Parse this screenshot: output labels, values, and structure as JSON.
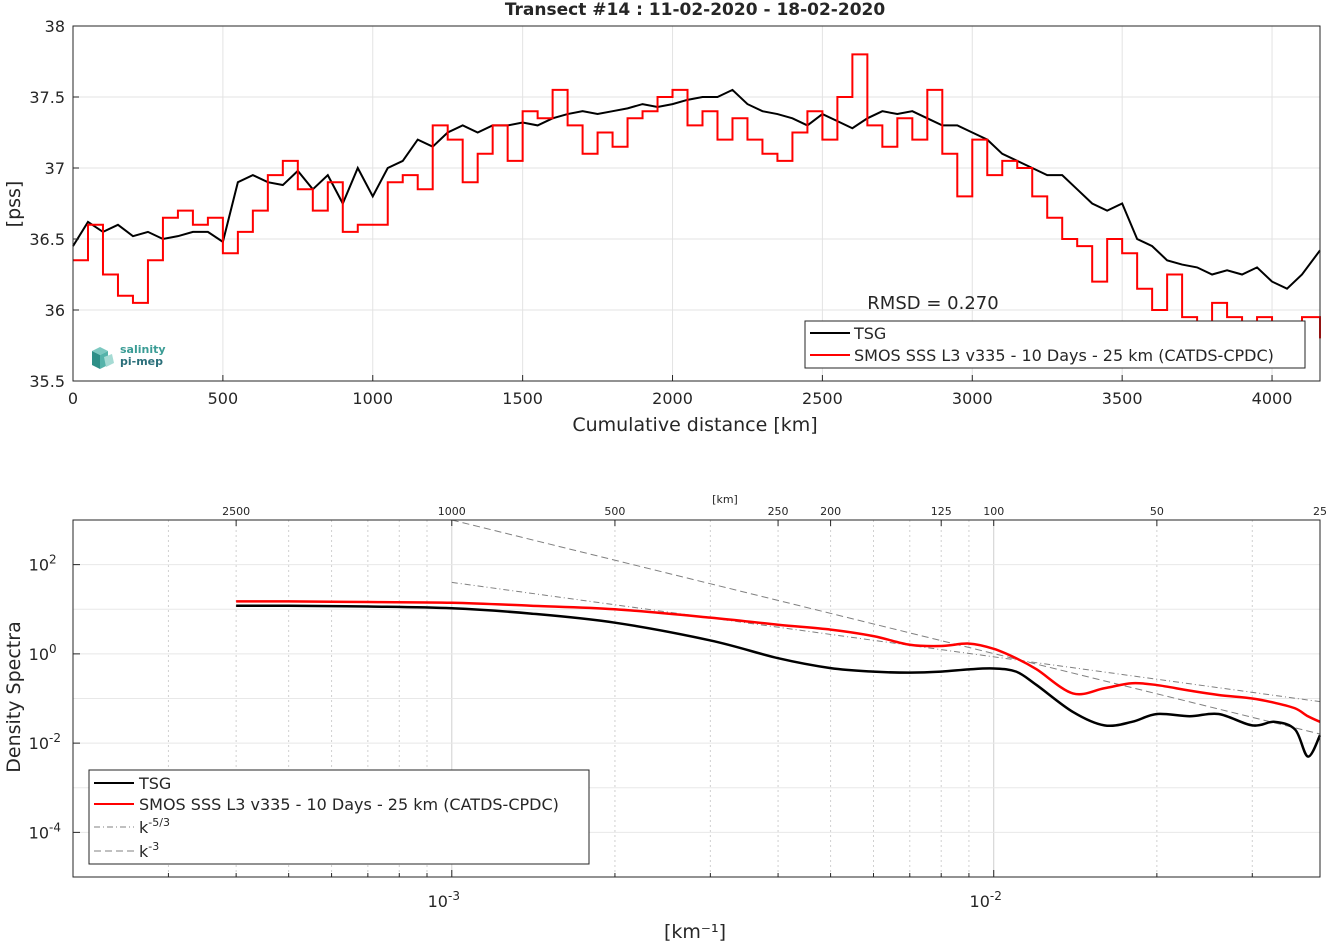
{
  "figure_title": "Transect #14 : 11-02-2020 - 18-02-2020",
  "logo": {
    "line1": "salinity",
    "line2": "pi-mep"
  },
  "colors": {
    "tsg": "#000000",
    "smos": "#ff0000",
    "ref": "#808080"
  },
  "chart_data": [
    {
      "type": "line",
      "title": "Transect #14 : 11-02-2020 - 18-02-2020",
      "xlabel": "Cumulative distance [km]",
      "ylabel": "[pss]",
      "xlim": [
        0,
        4160
      ],
      "ylim": [
        35.5,
        38
      ],
      "xticks": [
        0,
        500,
        1000,
        1500,
        2000,
        2500,
        3000,
        3500,
        4000
      ],
      "yticks": [
        35.5,
        36,
        36.5,
        37,
        37.5,
        38
      ],
      "grid": true,
      "legend_position": "bottom-right",
      "annotation": "RMSD = 0.270",
      "series": [
        {
          "name": "TSG",
          "x": [
            0,
            50,
            100,
            150,
            200,
            250,
            300,
            350,
            400,
            450,
            500,
            550,
            600,
            650,
            700,
            750,
            800,
            850,
            900,
            950,
            1000,
            1050,
            1100,
            1150,
            1200,
            1250,
            1300,
            1350,
            1400,
            1450,
            1500,
            1550,
            1600,
            1650,
            1700,
            1750,
            1800,
            1850,
            1900,
            1950,
            2000,
            2050,
            2100,
            2150,
            2200,
            2250,
            2300,
            2350,
            2400,
            2450,
            2500,
            2550,
            2600,
            2650,
            2700,
            2750,
            2800,
            2850,
            2900,
            2950,
            3000,
            3050,
            3100,
            3150,
            3200,
            3250,
            3300,
            3350,
            3400,
            3450,
            3500,
            3550,
            3600,
            3650,
            3700,
            3750,
            3800,
            3850,
            3900,
            3950,
            4000,
            4050,
            4100,
            4160
          ],
          "y": [
            36.45,
            36.62,
            36.55,
            36.6,
            36.52,
            36.55,
            36.5,
            36.52,
            36.55,
            36.55,
            36.48,
            36.9,
            36.95,
            36.9,
            36.88,
            36.98,
            36.85,
            36.95,
            36.75,
            37.0,
            36.8,
            37.0,
            37.05,
            37.2,
            37.15,
            37.25,
            37.3,
            37.25,
            37.3,
            37.3,
            37.32,
            37.3,
            37.35,
            37.38,
            37.4,
            37.38,
            37.4,
            37.42,
            37.45,
            37.43,
            37.45,
            37.48,
            37.5,
            37.5,
            37.55,
            37.45,
            37.4,
            37.38,
            37.35,
            37.3,
            37.38,
            37.33,
            37.28,
            37.35,
            37.4,
            37.38,
            37.4,
            37.35,
            37.3,
            37.3,
            37.25,
            37.2,
            37.1,
            37.05,
            37.0,
            36.95,
            36.95,
            36.85,
            36.75,
            36.7,
            36.75,
            36.5,
            36.45,
            36.35,
            36.32,
            36.3,
            36.25,
            36.28,
            36.25,
            36.3,
            36.2,
            36.15,
            36.25,
            36.42
          ]
        },
        {
          "name": "SMOS SSS L3 v335 - 10 Days - 25 km (CATDS-CPDC)",
          "x": [
            0,
            50,
            100,
            150,
            200,
            250,
            300,
            350,
            400,
            450,
            500,
            550,
            600,
            650,
            700,
            750,
            800,
            850,
            900,
            950,
            1000,
            1050,
            1100,
            1150,
            1200,
            1250,
            1300,
            1350,
            1400,
            1450,
            1500,
            1550,
            1600,
            1650,
            1700,
            1750,
            1800,
            1850,
            1900,
            1950,
            2000,
            2050,
            2100,
            2150,
            2200,
            2250,
            2300,
            2350,
            2400,
            2450,
            2500,
            2550,
            2600,
            2650,
            2700,
            2750,
            2800,
            2850,
            2900,
            2950,
            3000,
            3050,
            3100,
            3150,
            3200,
            3250,
            3300,
            3350,
            3400,
            3450,
            3500,
            3550,
            3600,
            3650,
            3700,
            3750,
            3800,
            3850,
            3900,
            3950,
            4000,
            4050,
            4100,
            4160
          ],
          "y": [
            36.35,
            36.6,
            36.25,
            36.1,
            36.05,
            36.35,
            36.65,
            36.7,
            36.6,
            36.65,
            36.4,
            36.55,
            36.7,
            36.95,
            37.05,
            36.85,
            36.7,
            36.9,
            36.55,
            36.6,
            36.6,
            36.9,
            36.95,
            36.85,
            37.3,
            37.2,
            36.9,
            37.1,
            37.3,
            37.05,
            37.4,
            37.35,
            37.55,
            37.3,
            37.1,
            37.25,
            37.15,
            37.35,
            37.4,
            37.5,
            37.55,
            37.3,
            37.4,
            37.2,
            37.35,
            37.2,
            37.1,
            37.05,
            37.25,
            37.4,
            37.2,
            37.5,
            37.8,
            37.3,
            37.15,
            37.35,
            37.2,
            37.55,
            37.1,
            36.8,
            37.2,
            36.95,
            37.05,
            37.0,
            36.8,
            36.65,
            36.5,
            36.45,
            36.2,
            36.5,
            36.4,
            36.15,
            36.0,
            36.25,
            35.95,
            35.9,
            36.05,
            35.95,
            35.9,
            35.95,
            35.85,
            35.75,
            35.95,
            35.8
          ]
        }
      ]
    },
    {
      "type": "line",
      "title": "",
      "xlabel": "[km⁻¹]",
      "ylabel": "Density Spectra",
      "xscale": "log",
      "yscale": "log",
      "xlim": [
        0.0002,
        0.04
      ],
      "ylim": [
        1e-05,
        1000
      ],
      "xticks": [
        0.001,
        0.01
      ],
      "xtick_labels": [
        {
          "base": "10",
          "exp": "-3"
        },
        {
          "base": "10",
          "exp": "-2"
        }
      ],
      "yticks": [
        0.0001,
        0.01,
        1,
        100
      ],
      "ytick_labels": [
        {
          "base": "10",
          "exp": "-4"
        },
        {
          "base": "10",
          "exp": "-2"
        },
        {
          "base": "10",
          "exp": "0"
        },
        {
          "base": "10",
          "exp": "2"
        }
      ],
      "top_axis_label": "[km]",
      "top_axis_ticks": [
        2500,
        1000,
        500,
        250,
        200,
        125,
        100,
        50,
        25
      ],
      "grid": true,
      "legend_position": "bottom-left",
      "series": [
        {
          "name": "TSG",
          "x": [
            0.0004,
            0.0005,
            0.0007,
            0.001,
            0.0014,
            0.002,
            0.003,
            0.004,
            0.005,
            0.006,
            0.007,
            0.008,
            0.009,
            0.01,
            0.011,
            0.012,
            0.014,
            0.016,
            0.018,
            0.02,
            0.023,
            0.026,
            0.03,
            0.033,
            0.036,
            0.038,
            0.04
          ],
          "y": [
            12,
            12,
            11.5,
            10.5,
            8,
            5,
            2,
            0.8,
            0.48,
            0.4,
            0.38,
            0.4,
            0.45,
            0.47,
            0.4,
            0.2,
            0.05,
            0.025,
            0.03,
            0.045,
            0.04,
            0.045,
            0.025,
            0.03,
            0.02,
            0.005,
            0.015
          ]
        },
        {
          "name": "SMOS SSS L3 v335 - 10 Days - 25 km (CATDS-CPDC)",
          "x": [
            0.0004,
            0.0005,
            0.0007,
            0.001,
            0.0014,
            0.002,
            0.003,
            0.004,
            0.005,
            0.006,
            0.007,
            0.008,
            0.009,
            0.01,
            0.011,
            0.012,
            0.014,
            0.016,
            0.018,
            0.02,
            0.023,
            0.026,
            0.03,
            0.033,
            0.036,
            0.038,
            0.04
          ],
          "y": [
            15,
            15,
            14.5,
            14,
            12,
            10,
            6.5,
            4.5,
            3.5,
            2.5,
            1.6,
            1.5,
            1.7,
            1.3,
            0.8,
            0.45,
            0.13,
            0.17,
            0.22,
            0.2,
            0.15,
            0.12,
            0.1,
            0.08,
            0.06,
            0.04,
            0.03
          ]
        },
        {
          "name": "k-5/3",
          "label_base": "k",
          "label_exp": "-5/3",
          "x": [
            0.001,
            0.04
          ],
          "y": [
            40,
            0.085
          ],
          "style": "dashdot"
        },
        {
          "name": "k-3",
          "label_base": "k",
          "label_exp": "-3",
          "x": [
            0.001,
            0.04
          ],
          "y": [
            1000,
            0.016
          ],
          "style": "dashed"
        }
      ]
    }
  ]
}
